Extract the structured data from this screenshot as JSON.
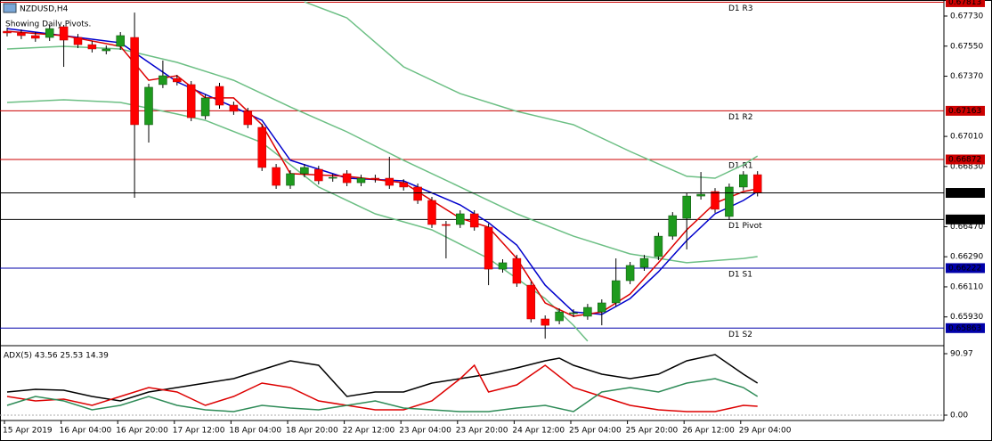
{
  "chart_data": [
    {
      "type": "candlestick",
      "title": "NZDUSD,H4",
      "subtitle": "Showing Daily Pivots.",
      "categories": [
        "15 Apr 2019",
        null,
        null,
        null,
        "16 Apr 04:00",
        null,
        null,
        null,
        "16 Apr 20:00",
        null,
        null,
        null,
        "17 Apr 12:00",
        null,
        null,
        null,
        "18 Apr 04:00",
        null,
        null,
        null,
        "18 Apr 20:00",
        null,
        null,
        null,
        "22 Apr 12:00",
        null,
        null,
        null,
        "23 Apr 04:00",
        null,
        null,
        null,
        "23 Apr 20:00",
        null,
        null,
        null,
        "24 Apr 12:00",
        null,
        null,
        null,
        "25 Apr 04:00",
        null,
        null,
        null,
        "25 Apr 20:00",
        null,
        null,
        null,
        "26 Apr 12:00",
        null,
        null,
        null,
        "29 Apr 04:00",
        null
      ],
      "open": [
        0.67639,
        0.67629,
        0.67613,
        0.67602,
        0.67666,
        0.67602,
        0.67559,
        0.67522,
        0.67549,
        0.67602,
        0.6708,
        0.6732,
        0.67357,
        0.6732,
        0.67133,
        0.67309,
        0.67197,
        0.6716,
        0.67064,
        0.66824,
        0.66717,
        0.66787,
        0.66813,
        0.6676,
        0.66787,
        0.66733,
        0.6676,
        0.6676,
        0.66733,
        0.66707,
        0.66627,
        0.66483,
        0.66483,
        0.66547,
        0.66467,
        0.66216,
        0.6628,
        0.6612,
        0.65918,
        0.65907,
        0.6595,
        0.65934,
        0.6596,
        0.66014,
        0.66147,
        0.66227,
        0.66291,
        0.66413,
        0.6652,
        0.66653,
        0.6668,
        0.66531,
        0.66707,
        0.66781
      ],
      "high": [
        0.6766,
        0.6765,
        0.67634,
        0.67676,
        0.67677,
        0.67623,
        0.6758,
        0.67554,
        0.67634,
        0.67751,
        0.67325,
        0.67464,
        0.67378,
        0.67341,
        0.67261,
        0.6733,
        0.67218,
        0.67181,
        0.67085,
        0.66845,
        0.66808,
        0.66845,
        0.66834,
        0.66786,
        0.66808,
        0.66781,
        0.66781,
        0.66888,
        0.66754,
        0.66728,
        0.66648,
        0.66504,
        0.66568,
        0.66568,
        0.66488,
        0.66275,
        0.66301,
        0.66141,
        0.65939,
        0.65981,
        0.65976,
        0.66008,
        0.66035,
        0.6628,
        0.66259,
        0.66301,
        0.66434,
        0.66557,
        0.66674,
        0.66797,
        0.66701,
        0.66728,
        0.66802,
        0.66802
      ],
      "low": [
        0.67608,
        0.67592,
        0.67576,
        0.67581,
        0.67426,
        0.67538,
        0.67512,
        0.67501,
        0.67528,
        0.66643,
        0.66973,
        0.67299,
        0.67315,
        0.67101,
        0.67112,
        0.67176,
        0.67139,
        0.67059,
        0.66803,
        0.66696,
        0.66696,
        0.66766,
        0.66723,
        0.66739,
        0.66712,
        0.66712,
        0.66734,
        0.66696,
        0.66686,
        0.66606,
        0.66462,
        0.6628,
        0.66462,
        0.66446,
        0.6612,
        0.66195,
        0.6611,
        0.65897,
        0.658,
        0.65886,
        0.65929,
        0.65913,
        0.6588,
        0.65993,
        0.66126,
        0.66206,
        0.6627,
        0.66392,
        0.66334,
        0.66632,
        0.66553,
        0.6651,
        0.66686,
        0.66651
      ],
      "close": [
        0.67629,
        0.67613,
        0.67597,
        0.67655,
        0.67586,
        0.67559,
        0.67533,
        0.67533,
        0.67613,
        0.6708,
        0.67304,
        0.67373,
        0.67336,
        0.67122,
        0.6724,
        0.67197,
        0.6716,
        0.6708,
        0.66824,
        0.66717,
        0.66787,
        0.66824,
        0.66744,
        0.66765,
        0.66733,
        0.6676,
        0.66755,
        0.66717,
        0.66707,
        0.66627,
        0.66483,
        0.66477,
        0.66547,
        0.66467,
        0.66216,
        0.66254,
        0.66131,
        0.65918,
        0.6588,
        0.6596,
        0.65955,
        0.65987,
        0.66014,
        0.66147,
        0.66238,
        0.6628,
        0.66413,
        0.66536,
        0.66653,
        0.66664,
        0.66574,
        0.66707,
        0.66781,
        0.66672
      ],
      "up_color": "#1e9a1e",
      "down_color": "#ff0000",
      "ylim": [
        0.65774,
        0.67826
      ],
      "yticks": [
        {
          "value": 0.6773,
          "label": "0.67730"
        },
        {
          "value": 0.6755,
          "label": "0.67550"
        },
        {
          "value": 0.6737,
          "label": "0.67370"
        },
        {
          "value": 0.6701,
          "label": "0.67010"
        },
        {
          "value": 0.6683,
          "label": "0.66830"
        },
        {
          "value": 0.6647,
          "label": "0.66470"
        },
        {
          "value": 0.6629,
          "label": "0.66290"
        },
        {
          "value": 0.6611,
          "label": "0.66110"
        },
        {
          "value": 0.6593,
          "label": "0.65930"
        }
      ],
      "series": [
        {
          "color": "#6cbf84",
          "x": [
            21,
            24,
            28,
            32,
            36,
            40,
            44,
            48,
            50,
            52,
            53
          ],
          "values": [
            0.67815,
            0.67719,
            0.67426,
            0.67266,
            0.6716,
            0.6708,
            0.6692,
            0.66771,
            0.6676,
            0.6684,
            0.66893
          ]
        },
        {
          "color": "#6cbf84",
          "x": [
            0,
            4,
            8,
            12,
            16,
            20,
            24,
            28,
            32,
            36,
            40,
            44,
            48,
            52,
            53
          ],
          "values": [
            0.67533,
            0.67549,
            0.67533,
            0.67453,
            0.67346,
            0.67186,
            0.67037,
            0.66867,
            0.66707,
            0.66547,
            0.66413,
            0.66307,
            0.66254,
            0.6628,
            0.66291
          ]
        },
        {
          "color": "#6cbf84",
          "x": [
            0,
            4,
            8,
            12,
            14,
            18,
            22,
            26,
            30,
            34,
            38,
            40,
            41
          ],
          "values": [
            0.67213,
            0.67229,
            0.67213,
            0.67144,
            0.67106,
            0.66973,
            0.66707,
            0.66547,
            0.66451,
            0.6628,
            0.6604,
            0.6588,
            0.65785
          ]
        },
        {
          "color": "#0000cc",
          "x": [
            0,
            4,
            8,
            10,
            12,
            16,
            18,
            20,
            24,
            28,
            32,
            34,
            36,
            38,
            40,
            42,
            44,
            46,
            48,
            50,
            52,
            53
          ],
          "values": [
            0.67655,
            0.67613,
            0.6757,
            0.67453,
            0.67336,
            0.67186,
            0.67106,
            0.66867,
            0.6676,
            0.66744,
            0.666,
            0.66494,
            0.6636,
            0.6612,
            0.6596,
            0.65945,
            0.6604,
            0.662,
            0.66387,
            0.66547,
            0.66627,
            0.6668
          ]
        },
        {
          "color": "#dd0000",
          "x": [
            0,
            4,
            8,
            10,
            12,
            14,
            16,
            18,
            20,
            24,
            28,
            32,
            34,
            36,
            38,
            40,
            42,
            44,
            46,
            48,
            50,
            52,
            53
          ],
          "values": [
            0.67639,
            0.67613,
            0.67549,
            0.67346,
            0.67373,
            0.6724,
            0.6724,
            0.6708,
            0.66787,
            0.66771,
            0.66733,
            0.6652,
            0.66467,
            0.6628,
            0.66014,
            0.65934,
            0.6596,
            0.66067,
            0.66254,
            0.66451,
            0.66611,
            0.6668,
            0.66696
          ]
        }
      ],
      "levels": [
        {
          "name": "D1 R3",
          "value": 0.67813,
          "color": "#cc0000"
        },
        {
          "name": "D1 R2",
          "value": 0.67163,
          "color": "#cc0000"
        },
        {
          "name": "D1 R1",
          "value": 0.66872,
          "color": "#cc0000"
        },
        {
          "name": "D1 Pivot",
          "value": 0.66513,
          "color": "#000000"
        },
        {
          "name": "D1 S1",
          "value": 0.66222,
          "color": "#0000aa"
        },
        {
          "name": "D1 S2",
          "value": 0.65863,
          "color": "#0000aa"
        }
      ],
      "current_price": 0.66672
    },
    {
      "type": "line",
      "title": "ADX(5) 43.56 25.53 14.39",
      "ylim": [
        -6.6,
        98.9
      ],
      "yticks": [
        90.97,
        {
          "value": 0,
          "label": "0.00"
        }
      ],
      "series": [
        {
          "color": "#000000",
          "x": [
            0,
            2,
            4,
            6,
            8,
            10,
            12,
            14,
            16,
            18,
            20,
            22,
            24,
            26,
            28,
            30,
            32,
            34,
            36,
            38,
            39,
            40,
            42,
            44,
            46,
            48,
            50,
            52,
            53
          ],
          "values": [
            34.3,
            38.2,
            36.9,
            27.7,
            21.1,
            34.3,
            40.9,
            47.5,
            54.1,
            67.2,
            80.4,
            73.8,
            27.7,
            34.3,
            34.3,
            47.5,
            54.1,
            60.6,
            69.9,
            80.4,
            84.4,
            73.8,
            60.6,
            54.1,
            60.6,
            80.4,
            89.7,
            60.6,
            47.5
          ]
        },
        {
          "color": "#dd0000",
          "x": [
            0,
            2,
            4,
            6,
            8,
            10,
            12,
            14,
            16,
            18,
            20,
            22,
            24,
            26,
            28,
            30,
            32,
            33,
            34,
            36,
            38,
            40,
            42,
            44,
            46,
            48,
            50,
            52,
            53
          ],
          "values": [
            27.7,
            21.1,
            23.7,
            14.5,
            27.7,
            40.9,
            34.3,
            14.5,
            27.7,
            47.5,
            40.9,
            21.1,
            14.5,
            7.9,
            7.9,
            21.1,
            54.1,
            73.8,
            34.3,
            44.8,
            73.8,
            40.9,
            27.7,
            14.5,
            7.9,
            5.3,
            5.3,
            14.5,
            13.2
          ]
        },
        {
          "color": "#2e8b57",
          "x": [
            0,
            2,
            4,
            6,
            8,
            10,
            12,
            14,
            16,
            18,
            20,
            22,
            24,
            26,
            28,
            30,
            32,
            34,
            36,
            38,
            40,
            42,
            44,
            46,
            48,
            50,
            52,
            53
          ],
          "values": [
            14.5,
            27.7,
            21.1,
            7.9,
            14.5,
            27.7,
            14.5,
            7.9,
            5.3,
            14.5,
            10.5,
            7.9,
            14.5,
            21.1,
            10.5,
            7.9,
            5.3,
            5.3,
            10.5,
            14.5,
            5.3,
            34.3,
            40.9,
            34.3,
            47.5,
            54.1,
            40.9,
            27.7
          ]
        }
      ]
    }
  ]
}
